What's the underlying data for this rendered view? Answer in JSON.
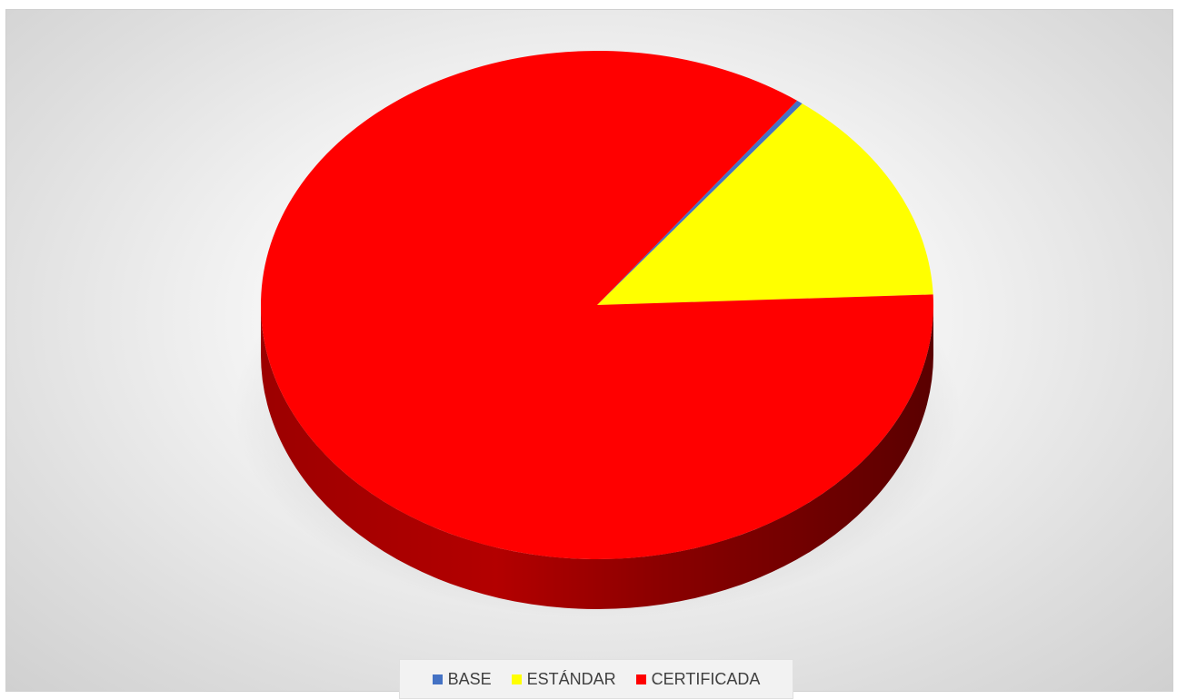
{
  "chart_data": {
    "type": "pie",
    "style": "3d",
    "categories": [
      "BASE",
      "ESTÁNDAR",
      "CERTIFICADA"
    ],
    "values": [
      0.3,
      13.9,
      85.8
    ],
    "colors": [
      "#4472C4",
      "#FFFF00",
      "#FF0000"
    ],
    "legend_position": "bottom"
  },
  "legend": {
    "items": [
      {
        "label": "BASE",
        "color": "#4472C4"
      },
      {
        "label": "ESTÁNDAR",
        "color": "#FFFF00"
      },
      {
        "label": "CERTIFICADA",
        "color": "#FF0000"
      }
    ]
  }
}
